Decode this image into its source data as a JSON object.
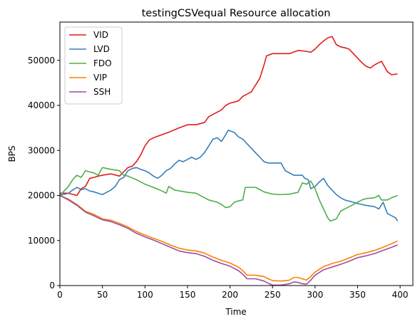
{
  "chart_data": {
    "type": "line",
    "title": "testingCSVequal Resource allocation",
    "xlabel": "Time",
    "ylabel": "BPS",
    "xlim": [
      0,
      415
    ],
    "ylim": [
      0,
      58500
    ],
    "xticks": [
      0,
      50,
      100,
      150,
      200,
      250,
      300,
      350,
      400
    ],
    "yticks": [
      0,
      10000,
      20000,
      30000,
      40000,
      50000
    ],
    "grid": false,
    "legend_position": "top-left",
    "series": [
      {
        "name": "VID",
        "color": "#e41a1c",
        "points": [
          [
            0,
            20500
          ],
          [
            10,
            20500
          ],
          [
            20,
            20000
          ],
          [
            25,
            21500
          ],
          [
            30,
            22000
          ],
          [
            35,
            23800
          ],
          [
            40,
            24000
          ],
          [
            45,
            24300
          ],
          [
            50,
            24500
          ],
          [
            60,
            24800
          ],
          [
            70,
            24300
          ],
          [
            80,
            26200
          ],
          [
            85,
            26500
          ],
          [
            90,
            27500
          ],
          [
            95,
            29000
          ],
          [
            100,
            31000
          ],
          [
            105,
            32300
          ],
          [
            110,
            32800
          ],
          [
            120,
            33500
          ],
          [
            130,
            34200
          ],
          [
            140,
            35000
          ],
          [
            150,
            35700
          ],
          [
            160,
            35700
          ],
          [
            170,
            36200
          ],
          [
            175,
            37500
          ],
          [
            180,
            38000
          ],
          [
            190,
            39000
          ],
          [
            195,
            40000
          ],
          [
            200,
            40500
          ],
          [
            210,
            41000
          ],
          [
            215,
            42000
          ],
          [
            220,
            42500
          ],
          [
            225,
            43000
          ],
          [
            230,
            44500
          ],
          [
            235,
            46000
          ],
          [
            240,
            49000
          ],
          [
            243,
            51000
          ],
          [
            250,
            51500
          ],
          [
            260,
            51500
          ],
          [
            270,
            51500
          ],
          [
            280,
            52200
          ],
          [
            290,
            52000
          ],
          [
            295,
            51800
          ],
          [
            300,
            52500
          ],
          [
            305,
            53500
          ],
          [
            310,
            54300
          ],
          [
            315,
            55000
          ],
          [
            320,
            55300
          ],
          [
            325,
            53500
          ],
          [
            330,
            53000
          ],
          [
            335,
            52800
          ],
          [
            340,
            52500
          ],
          [
            345,
            51500
          ],
          [
            350,
            50500
          ],
          [
            355,
            49500
          ],
          [
            360,
            48700
          ],
          [
            365,
            48300
          ],
          [
            370,
            49000
          ],
          [
            375,
            49500
          ],
          [
            378,
            49800
          ],
          [
            382,
            48500
          ],
          [
            385,
            47500
          ],
          [
            390,
            46800
          ],
          [
            397,
            47000
          ]
        ]
      },
      {
        "name": "LVD",
        "color": "#377eb8",
        "points": [
          [
            0,
            20000
          ],
          [
            10,
            20500
          ],
          [
            15,
            21200
          ],
          [
            20,
            21800
          ],
          [
            25,
            21300
          ],
          [
            30,
            21500
          ],
          [
            35,
            21000
          ],
          [
            40,
            20800
          ],
          [
            45,
            20500
          ],
          [
            50,
            20200
          ],
          [
            55,
            20700
          ],
          [
            60,
            21200
          ],
          [
            65,
            22000
          ],
          [
            70,
            23500
          ],
          [
            75,
            24000
          ],
          [
            80,
            25500
          ],
          [
            85,
            26000
          ],
          [
            90,
            26200
          ],
          [
            95,
            25800
          ],
          [
            100,
            25500
          ],
          [
            105,
            25000
          ],
          [
            110,
            24300
          ],
          [
            115,
            23800
          ],
          [
            120,
            24500
          ],
          [
            125,
            25500
          ],
          [
            130,
            26000
          ],
          [
            135,
            27000
          ],
          [
            140,
            27800
          ],
          [
            145,
            27500
          ],
          [
            150,
            28000
          ],
          [
            155,
            28500
          ],
          [
            160,
            28000
          ],
          [
            165,
            28500
          ],
          [
            170,
            29500
          ],
          [
            175,
            31000
          ],
          [
            180,
            32500
          ],
          [
            185,
            32800
          ],
          [
            190,
            32000
          ],
          [
            195,
            33500
          ],
          [
            198,
            34500
          ],
          [
            205,
            34000
          ],
          [
            210,
            33000
          ],
          [
            215,
            32500
          ],
          [
            220,
            31500
          ],
          [
            225,
            30500
          ],
          [
            230,
            29500
          ],
          [
            235,
            28500
          ],
          [
            240,
            27500
          ],
          [
            245,
            27200
          ],
          [
            255,
            27200
          ],
          [
            260,
            27200
          ],
          [
            265,
            25500
          ],
          [
            270,
            25000
          ],
          [
            275,
            24500
          ],
          [
            285,
            24500
          ],
          [
            288,
            23800
          ],
          [
            292,
            23500
          ],
          [
            295,
            21500
          ],
          [
            300,
            22000
          ],
          [
            305,
            23000
          ],
          [
            310,
            23800
          ],
          [
            315,
            22200
          ],
          [
            320,
            21200
          ],
          [
            325,
            20200
          ],
          [
            330,
            19500
          ],
          [
            335,
            19000
          ],
          [
            345,
            18500
          ],
          [
            350,
            18200
          ],
          [
            360,
            17800
          ],
          [
            370,
            17500
          ],
          [
            375,
            17000
          ],
          [
            380,
            18500
          ],
          [
            385,
            16000
          ],
          [
            390,
            15500
          ],
          [
            395,
            15000
          ],
          [
            397,
            14300
          ]
        ]
      },
      {
        "name": "FDO",
        "color": "#4daf4a",
        "points": [
          [
            0,
            20000
          ],
          [
            5,
            21000
          ],
          [
            10,
            22000
          ],
          [
            15,
            23500
          ],
          [
            20,
            24500
          ],
          [
            25,
            24000
          ],
          [
            30,
            25500
          ],
          [
            40,
            25000
          ],
          [
            45,
            24500
          ],
          [
            50,
            26200
          ],
          [
            60,
            25800
          ],
          [
            70,
            25500
          ],
          [
            75,
            24500
          ],
          [
            80,
            24300
          ],
          [
            90,
            23500
          ],
          [
            100,
            22500
          ],
          [
            110,
            21800
          ],
          [
            120,
            21000
          ],
          [
            125,
            20500
          ],
          [
            128,
            22000
          ],
          [
            135,
            21200
          ],
          [
            150,
            20700
          ],
          [
            160,
            20500
          ],
          [
            170,
            19500
          ],
          [
            175,
            19000
          ],
          [
            185,
            18500
          ],
          [
            190,
            18000
          ],
          [
            195,
            17300
          ],
          [
            200,
            17500
          ],
          [
            205,
            18500
          ],
          [
            210,
            18800
          ],
          [
            215,
            19000
          ],
          [
            218,
            21800
          ],
          [
            230,
            21800
          ],
          [
            240,
            20800
          ],
          [
            250,
            20300
          ],
          [
            260,
            20200
          ],
          [
            270,
            20300
          ],
          [
            280,
            20700
          ],
          [
            285,
            22800
          ],
          [
            290,
            22500
          ],
          [
            295,
            23200
          ],
          [
            300,
            21500
          ],
          [
            305,
            19000
          ],
          [
            310,
            17000
          ],
          [
            315,
            15000
          ],
          [
            318,
            14300
          ],
          [
            325,
            14800
          ],
          [
            330,
            16500
          ],
          [
            335,
            17000
          ],
          [
            340,
            17500
          ],
          [
            345,
            18000
          ],
          [
            350,
            18500
          ],
          [
            355,
            19000
          ],
          [
            360,
            19300
          ],
          [
            370,
            19500
          ],
          [
            375,
            20000
          ],
          [
            378,
            19000
          ],
          [
            385,
            19000
          ],
          [
            390,
            19500
          ],
          [
            397,
            20000
          ]
        ]
      },
      {
        "name": "VIP",
        "color": "#ff7f00",
        "points": [
          [
            0,
            20000
          ],
          [
            10,
            19200
          ],
          [
            20,
            18000
          ],
          [
            30,
            16500
          ],
          [
            40,
            15800
          ],
          [
            50,
            14800
          ],
          [
            60,
            14500
          ],
          [
            70,
            13800
          ],
          [
            80,
            13000
          ],
          [
            90,
            12000
          ],
          [
            100,
            11200
          ],
          [
            110,
            10500
          ],
          [
            120,
            9800
          ],
          [
            130,
            9000
          ],
          [
            140,
            8300
          ],
          [
            150,
            7900
          ],
          [
            160,
            7700
          ],
          [
            170,
            7200
          ],
          [
            180,
            6300
          ],
          [
            190,
            5600
          ],
          [
            200,
            5000
          ],
          [
            210,
            4100
          ],
          [
            215,
            3300
          ],
          [
            220,
            2300
          ],
          [
            230,
            2300
          ],
          [
            240,
            2000
          ],
          [
            245,
            1500
          ],
          [
            250,
            1100
          ],
          [
            260,
            1000
          ],
          [
            270,
            1200
          ],
          [
            275,
            1800
          ],
          [
            280,
            1800
          ],
          [
            285,
            1500
          ],
          [
            290,
            1200
          ],
          [
            295,
            2000
          ],
          [
            300,
            3000
          ],
          [
            310,
            4200
          ],
          [
            320,
            4900
          ],
          [
            330,
            5400
          ],
          [
            340,
            6100
          ],
          [
            350,
            6900
          ],
          [
            360,
            7300
          ],
          [
            370,
            7800
          ],
          [
            380,
            8500
          ],
          [
            390,
            9300
          ],
          [
            397,
            9900
          ]
        ]
      },
      {
        "name": "SSH",
        "color": "#984ea3",
        "points": [
          [
            0,
            20000
          ],
          [
            10,
            19000
          ],
          [
            20,
            17800
          ],
          [
            30,
            16300
          ],
          [
            40,
            15500
          ],
          [
            50,
            14600
          ],
          [
            60,
            14200
          ],
          [
            70,
            13500
          ],
          [
            80,
            12700
          ],
          [
            90,
            11600
          ],
          [
            100,
            10800
          ],
          [
            110,
            10100
          ],
          [
            120,
            9300
          ],
          [
            130,
            8500
          ],
          [
            140,
            7700
          ],
          [
            150,
            7300
          ],
          [
            160,
            7100
          ],
          [
            170,
            6500
          ],
          [
            180,
            5600
          ],
          [
            190,
            4900
          ],
          [
            200,
            4300
          ],
          [
            210,
            3300
          ],
          [
            215,
            2500
          ],
          [
            220,
            1500
          ],
          [
            230,
            1500
          ],
          [
            240,
            1000
          ],
          [
            245,
            500
          ],
          [
            250,
            100
          ],
          [
            260,
            100
          ],
          [
            270,
            400
          ],
          [
            275,
            800
          ],
          [
            280,
            700
          ],
          [
            285,
            400
          ],
          [
            290,
            300
          ],
          [
            295,
            1200
          ],
          [
            300,
            2300
          ],
          [
            310,
            3500
          ],
          [
            320,
            4100
          ],
          [
            330,
            4700
          ],
          [
            340,
            5400
          ],
          [
            350,
            6200
          ],
          [
            360,
            6600
          ],
          [
            370,
            7100
          ],
          [
            380,
            7800
          ],
          [
            390,
            8500
          ],
          [
            397,
            9000
          ]
        ]
      }
    ]
  }
}
